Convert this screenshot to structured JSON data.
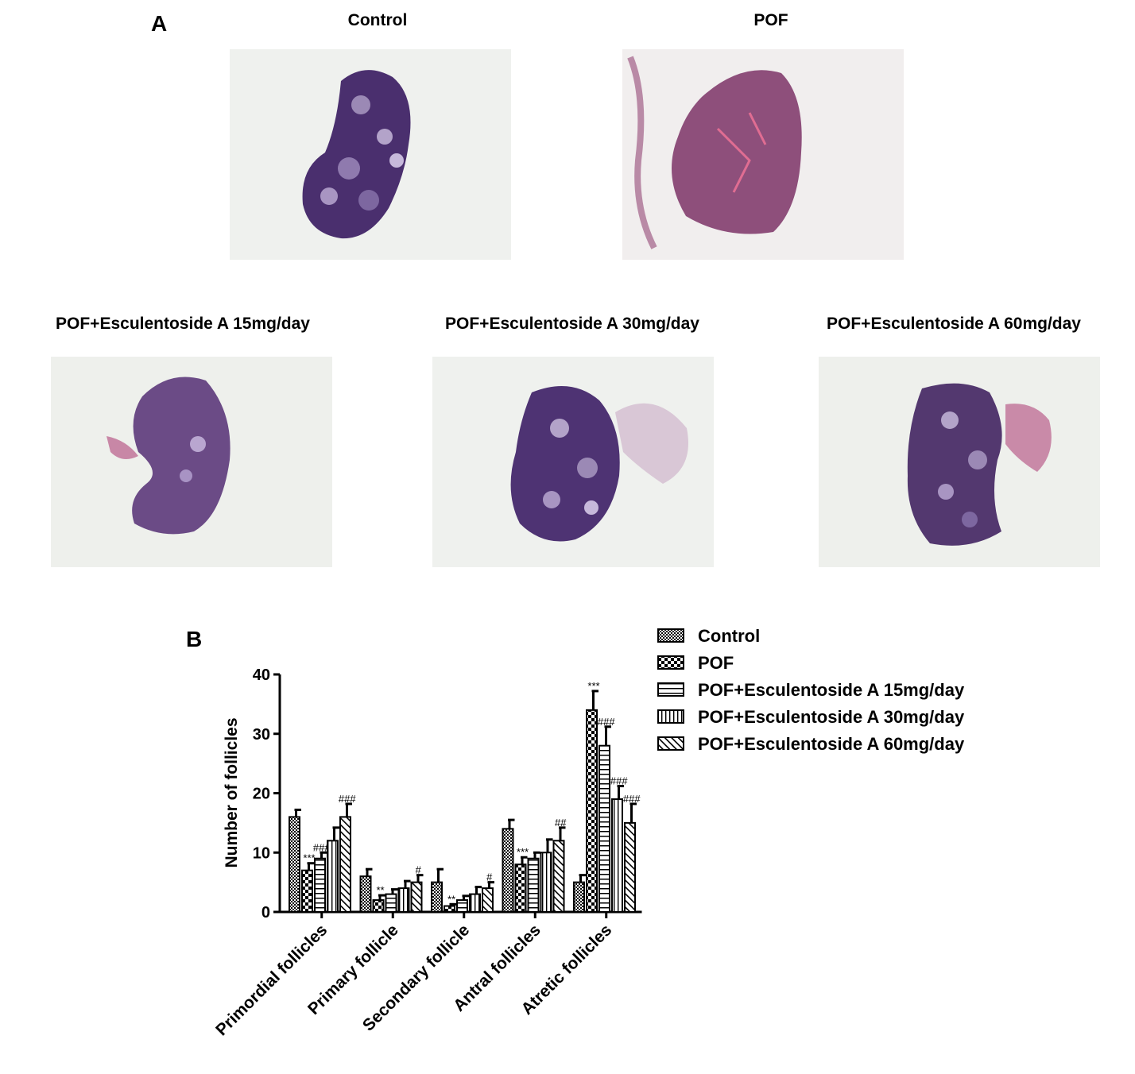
{
  "panel_a": {
    "label": "A",
    "images": [
      {
        "title": "Control"
      },
      {
        "title": "POF"
      },
      {
        "title": "POF+Esculentoside A 15mg/day"
      },
      {
        "title": "POF+Esculentoside A 30mg/day"
      },
      {
        "title": "POF+Esculentoside A 60mg/day"
      }
    ]
  },
  "panel_b": {
    "label": "B"
  },
  "chart_data": {
    "type": "bar",
    "ylabel": "Number of follicles",
    "ylim": [
      0,
      40
    ],
    "yticks": [
      0,
      10,
      20,
      30,
      40
    ],
    "categories": [
      "Primordial follicles",
      "Primary follicle",
      "Secondary follicle",
      "Antral follicles",
      "Atretic follicles"
    ],
    "series": [
      {
        "name": "Control",
        "values": [
          16,
          6,
          5,
          14,
          5
        ],
        "errors": [
          1.2,
          1.2,
          2.2,
          1.5,
          1.2
        ],
        "pattern": "fine-checker",
        "annotations": [
          "",
          "",
          "",
          "",
          ""
        ]
      },
      {
        "name": "POF",
        "values": [
          7,
          2,
          1,
          8,
          34
        ],
        "errors": [
          1.2,
          0.8,
          0.3,
          1.2,
          3.2
        ],
        "pattern": "coarse-checker",
        "annotations": [
          "***",
          "**",
          "**",
          "***",
          "***"
        ]
      },
      {
        "name": "POF+Esculentoside A 15mg/day",
        "values": [
          9,
          3,
          2,
          9,
          28
        ],
        "errors": [
          1.0,
          0.8,
          0.7,
          1.0,
          3.2
        ],
        "pattern": "horizontal",
        "annotations": [
          "###",
          "",
          "",
          "",
          "###"
        ]
      },
      {
        "name": "POF+Esculentoside A 30mg/day",
        "values": [
          12,
          4,
          3,
          10,
          19
        ],
        "errors": [
          2.2,
          1.2,
          1.2,
          2.2,
          2.2
        ],
        "pattern": "vertical",
        "annotations": [
          "",
          "",
          "",
          "",
          "###"
        ]
      },
      {
        "name": "POF+Esculentoside A 60mg/day",
        "values": [
          16,
          5,
          4,
          12,
          15
        ],
        "errors": [
          2.2,
          1.2,
          1.0,
          2.2,
          3.2
        ],
        "pattern": "diagonal",
        "annotations": [
          "###",
          "#",
          "#",
          "##",
          "###"
        ]
      }
    ],
    "legend_position": "top-right"
  }
}
